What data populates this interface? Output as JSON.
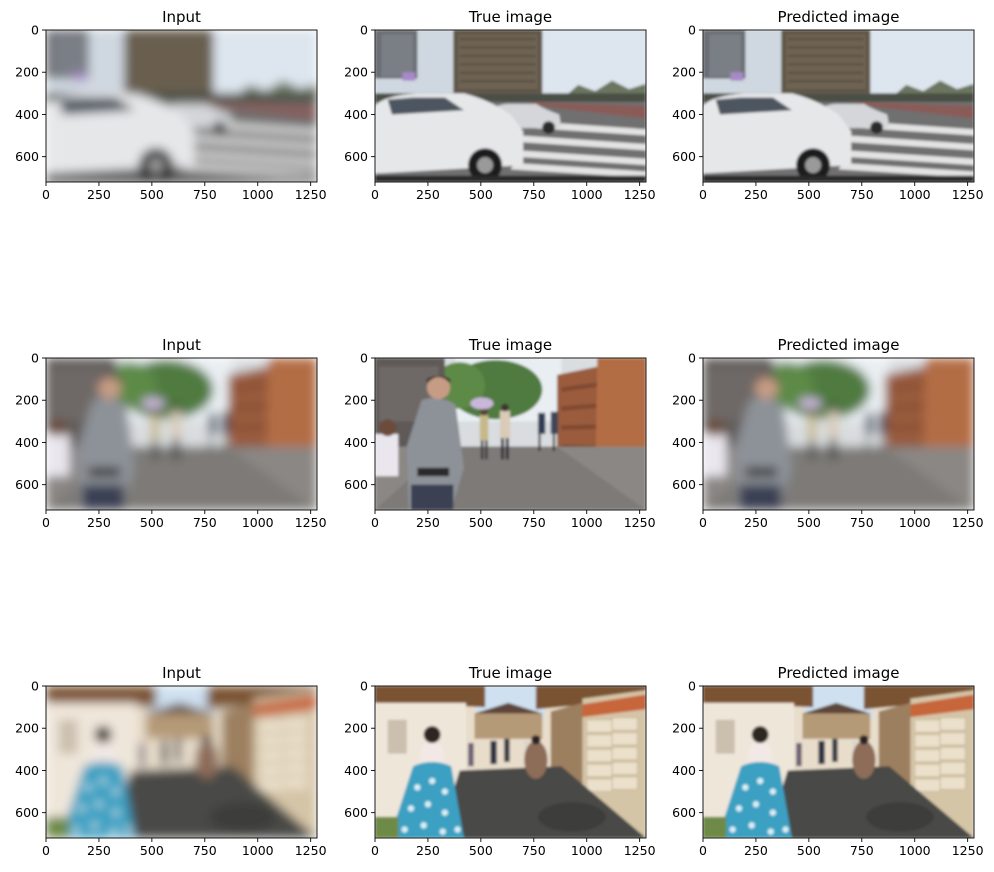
{
  "chart_data": {
    "type": "image_grid",
    "axes": {
      "xlim": [
        0,
        1280
      ],
      "ylim": [
        720,
        0
      ],
      "xticks": [
        0,
        250,
        500,
        750,
        1000,
        1250
      ],
      "yticks": [
        0,
        200,
        400,
        600
      ]
    },
    "panels": [
      {
        "title": "Input",
        "scene": "street-crossing",
        "blurred": true
      },
      {
        "title": "True image",
        "scene": "street-crossing",
        "blurred": false
      },
      {
        "title": "Predicted image",
        "scene": "street-crossing",
        "blurred": false
      },
      {
        "title": "Input",
        "scene": "alley-pedestrians",
        "blurred": true
      },
      {
        "title": "True image",
        "scene": "alley-pedestrians",
        "blurred": false
      },
      {
        "title": "Predicted image",
        "scene": "alley-pedestrians",
        "blurred": true
      },
      {
        "title": "Input",
        "scene": "hanok-street",
        "blurred": true
      },
      {
        "title": "True image",
        "scene": "hanok-street",
        "blurred": false
      },
      {
        "title": "Predicted image",
        "scene": "hanok-street",
        "blurred": false
      }
    ]
  }
}
